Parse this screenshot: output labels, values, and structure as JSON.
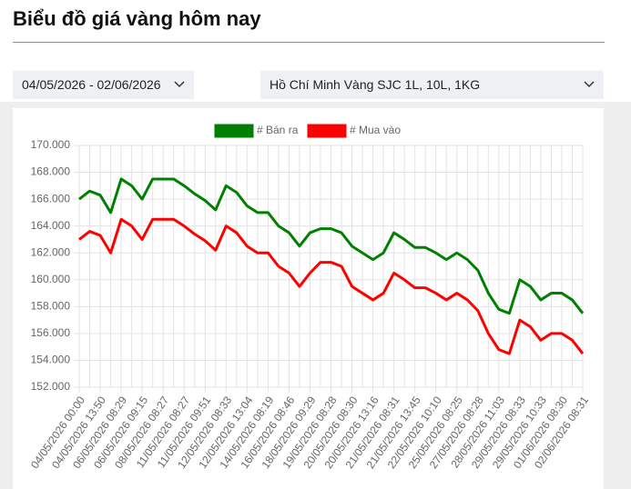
{
  "header": {
    "title": "Biểu đồ giá vàng hôm nay"
  },
  "filters": {
    "date_range": "04/05/2026 - 02/06/2026",
    "product": "Hồ Chí Minh Vàng SJC 1L, 10L, 1KG"
  },
  "chart_data": {
    "type": "line",
    "categories": [
      "04/05/2026 00:00",
      null,
      "04/05/2026 13:50",
      null,
      "06/05/2026 08:29",
      null,
      "06/05/2026 09:15",
      null,
      "08/05/2026 08:27",
      null,
      "11/05/2026 08:27",
      null,
      "11/05/2026 09:51",
      null,
      "12/05/2026 08:33",
      null,
      "12/05/2026 13:04",
      null,
      "14/05/2026 08:19",
      null,
      "16/05/2026 08:46",
      null,
      "18/05/2026 09:29",
      null,
      "19/05/2026 08:28",
      null,
      "20/05/2026 08:30",
      null,
      "20/05/2026 13:16",
      null,
      "21/05/2026 08:31",
      null,
      "21/05/2026 13:45",
      null,
      "22/05/2026 10:10",
      null,
      "25/05/2026 08:25",
      null,
      "27/05/2026 08:28",
      null,
      "28/05/2026 11:03",
      null,
      "29/05/2026 08:33",
      null,
      "29/05/2026 10:33",
      null,
      "01/06/2026 08:30",
      null,
      "02/06/2026 08:31"
    ],
    "series": [
      {
        "name": "# Bán ra",
        "color": "#008000",
        "values": [
          166000,
          166600,
          166300,
          165000,
          167500,
          167000,
          166000,
          167500,
          167500,
          167500,
          167000,
          166400,
          165900,
          165200,
          167000,
          166500,
          165500,
          165000,
          165000,
          164000,
          163500,
          162500,
          163500,
          163800,
          163800,
          163500,
          162500,
          162000,
          161500,
          162000,
          163500,
          163000,
          162400,
          162400,
          162000,
          161500,
          162000,
          161500,
          160700,
          159000,
          157800,
          157500,
          160000,
          159500,
          158500,
          159000,
          159000,
          158500,
          157500
        ]
      },
      {
        "name": "# Mua vào",
        "color": "#ff0000",
        "values": [
          163000,
          163600,
          163300,
          162000,
          164500,
          164000,
          163000,
          164500,
          164500,
          164500,
          164000,
          163400,
          162900,
          162200,
          164000,
          163500,
          162500,
          162000,
          162000,
          161000,
          160500,
          159500,
          160500,
          161300,
          161300,
          161000,
          159500,
          159000,
          158500,
          159000,
          160500,
          160000,
          159400,
          159400,
          159000,
          158500,
          159000,
          158500,
          157700,
          156000,
          154800,
          154500,
          157000,
          156500,
          155500,
          156000,
          156000,
          155500,
          154500
        ]
      }
    ],
    "ylim": [
      152000,
      170000
    ],
    "yticks": [
      {
        "value": 152000,
        "label": "152.000"
      },
      {
        "value": 154000,
        "label": "154.000"
      },
      {
        "value": 156000,
        "label": "156.000"
      },
      {
        "value": 158000,
        "label": "158.000"
      },
      {
        "value": 160000,
        "label": "160.000"
      },
      {
        "value": 162000,
        "label": "162.000"
      },
      {
        "value": 164000,
        "label": "164.000"
      },
      {
        "value": 166000,
        "label": "166.000"
      },
      {
        "value": 168000,
        "label": "168.000"
      },
      {
        "value": 170000,
        "label": "170.000"
      }
    ],
    "grid": true,
    "legend": "top"
  }
}
